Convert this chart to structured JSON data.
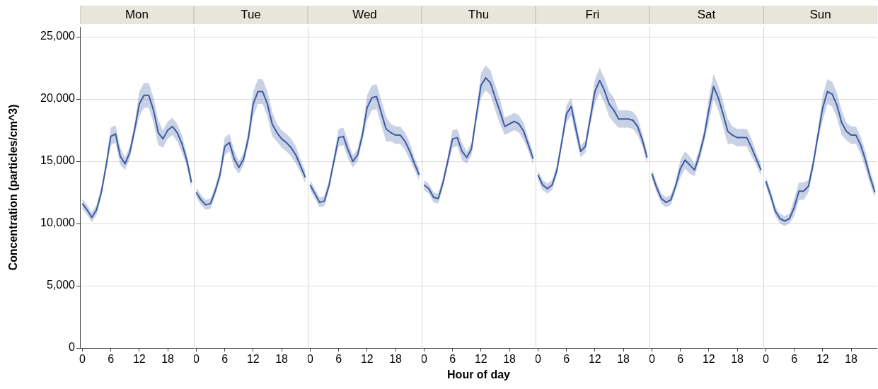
{
  "chart_data": [
    {
      "type": "line",
      "title": "Mon",
      "ylabel": "Concentration (particles/cm^3)",
      "x": [
        0,
        1,
        2,
        3,
        4,
        5,
        6,
        7,
        8,
        9,
        10,
        11,
        12,
        13,
        14,
        15,
        16,
        17,
        18,
        19,
        20,
        21,
        22,
        23
      ],
      "xlim": [
        -0.5,
        23.5
      ],
      "xticks": [
        0,
        6,
        12,
        18
      ],
      "ylim": [
        0,
        25800
      ],
      "yticks": [
        {
          "value": 0,
          "label": "0"
        },
        {
          "value": 5000,
          "label": "5,000"
        },
        {
          "value": 10000,
          "label": "10,000"
        },
        {
          "value": 15000,
          "label": "15,000"
        },
        {
          "value": 20000,
          "label": "20,000"
        },
        {
          "value": 25000,
          "label": "25,000"
        }
      ],
      "grid": "y",
      "marker": "none",
      "line_style": "solid",
      "series": [
        {
          "color": "#3d5ba3",
          "values": [
            11600,
            11100,
            10500,
            11100,
            12500,
            14600,
            17000,
            17200,
            15400,
            14800,
            15700,
            17500,
            19600,
            20300,
            20300,
            19100,
            17300,
            16800,
            17500,
            17800,
            17300,
            16400,
            15100,
            13300
          ],
          "lower": [
            11200,
            10700,
            10100,
            10700,
            12100,
            14200,
            16300,
            16500,
            14700,
            14300,
            15200,
            17000,
            18600,
            19300,
            19300,
            18100,
            16300,
            16100,
            16800,
            17100,
            16600,
            15700,
            14600,
            12800
          ],
          "upper": [
            12000,
            11500,
            10900,
            11500,
            12900,
            15000,
            17700,
            17900,
            16100,
            15300,
            16200,
            18000,
            20600,
            21300,
            21300,
            20100,
            18300,
            17500,
            18200,
            18500,
            18000,
            17100,
            15600,
            13800
          ]
        }
      ]
    },
    {
      "type": "line",
      "title": "Tue",
      "x": [
        0,
        1,
        2,
        3,
        4,
        5,
        6,
        7,
        8,
        9,
        10,
        11,
        12,
        13,
        14,
        15,
        16,
        17,
        18,
        19,
        20,
        21,
        22,
        23
      ],
      "xlim": [
        -0.5,
        23.5
      ],
      "xticks": [
        0,
        6,
        12,
        18
      ],
      "ylim": [
        0,
        25800
      ],
      "yticks": [
        0,
        5000,
        10000,
        15000,
        20000,
        25000
      ],
      "grid": "y",
      "tick_labels": "x",
      "marker": "none",
      "line_style": "solid",
      "series": [
        {
          "color": "#3d5ba3",
          "values": [
            12500,
            11900,
            11500,
            11600,
            12600,
            13900,
            16200,
            16500,
            15200,
            14500,
            15200,
            16900,
            19600,
            20600,
            20600,
            19600,
            18000,
            17300,
            16800,
            16500,
            16100,
            15500,
            14600,
            13700
          ],
          "lower": [
            12100,
            11500,
            11100,
            11200,
            12200,
            13500,
            15500,
            15800,
            14500,
            14000,
            14700,
            16400,
            18600,
            19600,
            19600,
            18600,
            17000,
            16600,
            16100,
            15800,
            15400,
            14800,
            14100,
            13200
          ],
          "upper": [
            12900,
            12300,
            11900,
            12000,
            13000,
            14300,
            16900,
            17200,
            15900,
            15000,
            15700,
            17400,
            20600,
            21600,
            21600,
            20600,
            19000,
            18000,
            17500,
            17200,
            16800,
            16200,
            15100,
            14200
          ]
        }
      ]
    },
    {
      "type": "line",
      "title": "Wed",
      "x": [
        0,
        1,
        2,
        3,
        4,
        5,
        6,
        7,
        8,
        9,
        10,
        11,
        12,
        13,
        14,
        15,
        16,
        17,
        18,
        19,
        20,
        21,
        22,
        23
      ],
      "xlim": [
        -0.5,
        23.5
      ],
      "xticks": [
        0,
        6,
        12,
        18
      ],
      "ylim": [
        0,
        25800
      ],
      "yticks": [
        0,
        5000,
        10000,
        15000,
        20000,
        25000
      ],
      "grid": "y",
      "tick_labels": "x",
      "marker": "none",
      "line_style": "solid",
      "series": [
        {
          "color": "#3d5ba3",
          "values": [
            13100,
            12400,
            11700,
            11800,
            13100,
            15000,
            16900,
            17000,
            15900,
            15000,
            15500,
            17100,
            19300,
            20100,
            20200,
            18900,
            17600,
            17300,
            17100,
            17100,
            16600,
            15800,
            14800,
            13900
          ],
          "lower": [
            12700,
            12000,
            11300,
            11400,
            12700,
            14600,
            16200,
            16300,
            15200,
            14500,
            15000,
            16600,
            18300,
            19100,
            19200,
            17900,
            16600,
            16600,
            16400,
            16400,
            15900,
            15100,
            14300,
            13400
          ],
          "upper": [
            13500,
            12800,
            12100,
            12200,
            13500,
            15400,
            17600,
            17700,
            16600,
            15500,
            16000,
            17600,
            20300,
            21100,
            21200,
            19900,
            18600,
            18000,
            17800,
            17800,
            17300,
            16500,
            15300,
            14400
          ]
        }
      ]
    },
    {
      "type": "line",
      "title": "Thu",
      "xlabel": "Hour of day",
      "x": [
        0,
        1,
        2,
        3,
        4,
        5,
        6,
        7,
        8,
        9,
        10,
        11,
        12,
        13,
        14,
        15,
        16,
        17,
        18,
        19,
        20,
        21,
        22,
        23
      ],
      "xlim": [
        -0.5,
        23.5
      ],
      "xticks": [
        0,
        6,
        12,
        18
      ],
      "ylim": [
        0,
        25800
      ],
      "yticks": [
        0,
        5000,
        10000,
        15000,
        20000,
        25000
      ],
      "grid": "y",
      "tick_labels": "x",
      "marker": "none",
      "line_style": "solid",
      "series": [
        {
          "color": "#3d5ba3",
          "values": [
            13100,
            12800,
            12100,
            12000,
            13300,
            15000,
            16800,
            16900,
            15800,
            15300,
            16000,
            18600,
            21100,
            21700,
            21300,
            20100,
            19000,
            17800,
            18000,
            18200,
            18000,
            17400,
            16300,
            15200
          ],
          "lower": [
            12700,
            12400,
            11700,
            11600,
            12900,
            14600,
            16100,
            16200,
            15100,
            14800,
            15500,
            18100,
            20100,
            20700,
            20300,
            19100,
            18000,
            17100,
            17300,
            17500,
            17300,
            16700,
            15800,
            14700
          ],
          "upper": [
            13500,
            13200,
            12500,
            12400,
            13700,
            15400,
            17500,
            17600,
            16500,
            15800,
            16500,
            19100,
            22100,
            22700,
            22300,
            21100,
            20000,
            18500,
            18700,
            18900,
            18700,
            18100,
            16800,
            15700
          ]
        }
      ]
    },
    {
      "type": "line",
      "title": "Fri",
      "x": [
        0,
        1,
        2,
        3,
        4,
        5,
        6,
        7,
        8,
        9,
        10,
        11,
        12,
        13,
        14,
        15,
        16,
        17,
        18,
        19,
        20,
        21,
        22,
        23
      ],
      "xlim": [
        -0.5,
        23.5
      ],
      "xticks": [
        0,
        6,
        12,
        18
      ],
      "ylim": [
        0,
        25800
      ],
      "yticks": [
        0,
        5000,
        10000,
        15000,
        20000,
        25000
      ],
      "grid": "y",
      "tick_labels": "x",
      "marker": "none",
      "line_style": "solid",
      "series": [
        {
          "color": "#3d5ba3",
          "values": [
            13900,
            13100,
            12800,
            13100,
            14300,
            16500,
            18800,
            19400,
            17600,
            15800,
            16200,
            18400,
            20600,
            21500,
            20700,
            19600,
            19100,
            18400,
            18400,
            18400,
            18300,
            17800,
            16700,
            15300
          ],
          "lower": [
            13500,
            12700,
            12400,
            12700,
            13900,
            16100,
            18100,
            18700,
            16900,
            15300,
            15700,
            17900,
            19600,
            20500,
            19700,
            18600,
            18100,
            17700,
            17700,
            17700,
            17600,
            17100,
            16200,
            14800
          ],
          "upper": [
            14300,
            13500,
            13200,
            13500,
            14700,
            16900,
            19500,
            20100,
            18300,
            16300,
            16700,
            18900,
            21600,
            22500,
            21700,
            20600,
            20100,
            19100,
            19100,
            19100,
            19000,
            18500,
            17200,
            15800
          ]
        }
      ]
    },
    {
      "type": "line",
      "title": "Sat",
      "x": [
        0,
        1,
        2,
        3,
        4,
        5,
        6,
        7,
        8,
        9,
        10,
        11,
        12,
        13,
        14,
        15,
        16,
        17,
        18,
        19,
        20,
        21,
        22,
        23
      ],
      "xlim": [
        -0.5,
        23.5
      ],
      "xticks": [
        0,
        6,
        12,
        18
      ],
      "ylim": [
        0,
        25800
      ],
      "yticks": [
        0,
        5000,
        10000,
        15000,
        20000,
        25000
      ],
      "grid": "y",
      "tick_labels": "x",
      "marker": "none",
      "line_style": "solid",
      "series": [
        {
          "color": "#3d5ba3",
          "values": [
            14000,
            12900,
            12000,
            11700,
            11900,
            13000,
            14400,
            15100,
            14700,
            14300,
            15500,
            17000,
            19100,
            21000,
            20100,
            18800,
            17400,
            17100,
            16900,
            16900,
            16900,
            16100,
            15200,
            14300
          ],
          "lower": [
            13600,
            12500,
            11600,
            11300,
            11500,
            12600,
            13700,
            14400,
            14000,
            13800,
            15000,
            16500,
            18100,
            20000,
            19100,
            17800,
            16400,
            16400,
            16200,
            16200,
            16200,
            15400,
            14700,
            13800
          ],
          "upper": [
            14400,
            13300,
            12400,
            12100,
            12300,
            13400,
            15100,
            15800,
            15400,
            14800,
            16000,
            17500,
            20100,
            22000,
            21100,
            19800,
            18400,
            17800,
            17600,
            17600,
            17600,
            16800,
            15700,
            14800
          ]
        }
      ]
    },
    {
      "type": "line",
      "title": "Sun",
      "x": [
        0,
        1,
        2,
        3,
        4,
        5,
        6,
        7,
        8,
        9,
        10,
        11,
        12,
        13,
        14,
        15,
        16,
        17,
        18,
        19,
        20,
        21,
        22,
        23
      ],
      "xlim": [
        -0.5,
        23.5
      ],
      "xticks": [
        0,
        6,
        12,
        18
      ],
      "ylim": [
        0,
        25800
      ],
      "yticks": [
        0,
        5000,
        10000,
        15000,
        20000,
        25000
      ],
      "grid": "y",
      "tick_labels": "x",
      "marker": "none",
      "line_style": "solid",
      "series": [
        {
          "color": "#3d5ba3",
          "values": [
            13400,
            12300,
            11000,
            10400,
            10200,
            10400,
            11300,
            12600,
            12600,
            13000,
            14800,
            17100,
            19300,
            20600,
            20400,
            19500,
            18100,
            17400,
            17100,
            17100,
            16300,
            15100,
            13700,
            12500
          ],
          "lower": [
            13000,
            11900,
            10600,
            10000,
            9800,
            10000,
            10600,
            11900,
            11900,
            12500,
            14300,
            16600,
            18300,
            19600,
            19400,
            18500,
            17100,
            16700,
            16400,
            16400,
            15600,
            14400,
            13200,
            12000
          ],
          "upper": [
            13800,
            12700,
            11400,
            10800,
            10600,
            10800,
            12000,
            13300,
            13300,
            13500,
            15300,
            17600,
            20300,
            21600,
            21400,
            20500,
            19100,
            18100,
            17800,
            17800,
            17000,
            15800,
            14200,
            13000
          ]
        }
      ]
    }
  ]
}
